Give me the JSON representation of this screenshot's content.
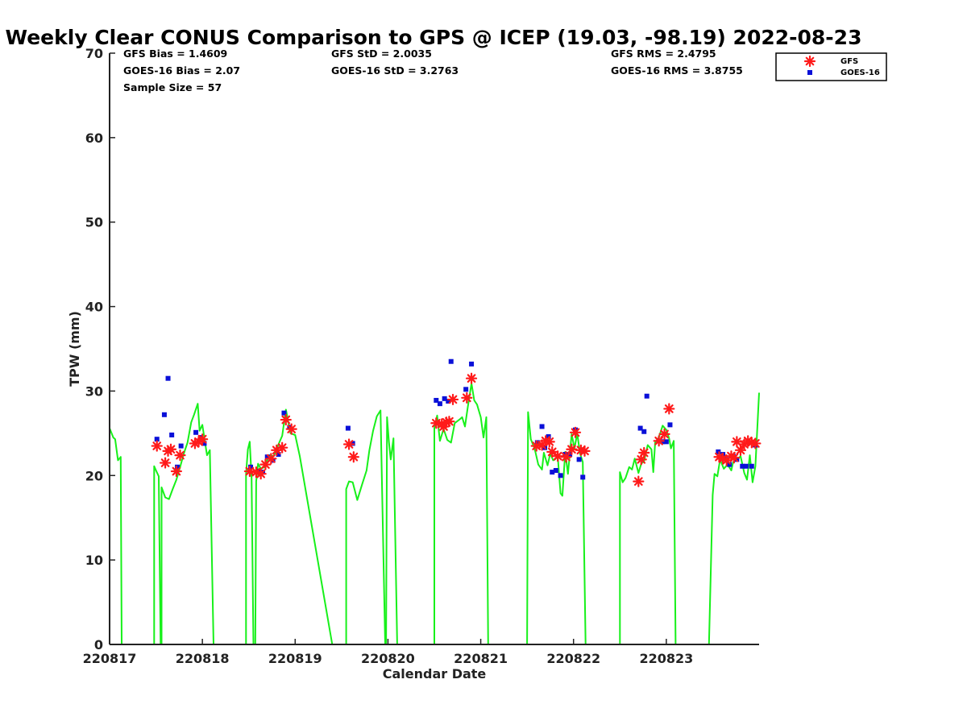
{
  "chart_data": {
    "type": "scatter",
    "title": "Weekly Clear CONUS Comparison to GPS @ ICEP (19.03, -98.19) 2022-08-23",
    "xlabel": "Calendar Date",
    "ylabel": "TPW (mm)",
    "xlim": [
      0,
      7
    ],
    "ylim": [
      0,
      70
    ],
    "x_ticks": [
      0,
      1,
      2,
      3,
      4,
      5,
      6
    ],
    "x_tick_labels": [
      "220817",
      "220818",
      "220819",
      "220820",
      "220821",
      "220822",
      "220823"
    ],
    "y_ticks": [
      0,
      10,
      20,
      30,
      40,
      50,
      60,
      70
    ],
    "grid": false,
    "legend_position": "top-right",
    "stats": {
      "gfs_bias": "GFS Bias = 1.4609",
      "goes_bias": "GOES-16 Bias = 2.07",
      "sample_size": "Sample Size = 57",
      "gfs_std": "GFS StD = 2.0035",
      "goes_std": "GOES-16 StD = 3.2763",
      "gfs_rms": "GFS RMS = 2.4795",
      "goes_rms": "GOES-16 RMS = 3.8755"
    },
    "series": [
      {
        "name": "GFS",
        "marker": "asterisk",
        "color": "#ff1a1a",
        "points": [
          [
            0.51,
            23.5
          ],
          [
            0.6,
            21.5
          ],
          [
            0.63,
            22.9
          ],
          [
            0.66,
            23.1
          ],
          [
            0.72,
            20.5
          ],
          [
            0.76,
            22.4
          ],
          [
            0.92,
            23.8
          ],
          [
            0.96,
            24.0
          ],
          [
            1.0,
            24.3
          ],
          [
            1.51,
            20.5
          ],
          [
            1.58,
            20.4
          ],
          [
            1.63,
            20.2
          ],
          [
            1.68,
            21.3
          ],
          [
            1.74,
            22.0
          ],
          [
            1.8,
            23.0
          ],
          [
            1.86,
            23.3
          ],
          [
            1.9,
            26.6
          ],
          [
            1.96,
            25.5
          ],
          [
            2.58,
            23.7
          ],
          [
            2.63,
            22.2
          ],
          [
            3.52,
            26.2
          ],
          [
            3.58,
            26.1
          ],
          [
            3.6,
            25.8
          ],
          [
            3.63,
            26.3
          ],
          [
            3.66,
            26.4
          ],
          [
            3.7,
            29.0
          ],
          [
            3.85,
            29.2
          ],
          [
            3.9,
            31.5
          ],
          [
            4.6,
            23.5
          ],
          [
            4.66,
            23.6
          ],
          [
            4.7,
            24.1
          ],
          [
            4.74,
            24.0
          ],
          [
            4.77,
            22.8
          ],
          [
            4.83,
            22.3
          ],
          [
            4.92,
            22.2
          ],
          [
            4.98,
            23.1
          ],
          [
            5.02,
            25.1
          ],
          [
            5.08,
            23.0
          ],
          [
            5.12,
            22.9
          ],
          [
            5.7,
            19.3
          ],
          [
            5.73,
            21.9
          ],
          [
            5.76,
            22.7
          ],
          [
            5.92,
            24.1
          ],
          [
            5.98,
            24.9
          ],
          [
            6.03,
            27.9
          ],
          [
            6.57,
            22.2
          ],
          [
            6.61,
            22.0
          ],
          [
            6.65,
            21.8
          ],
          [
            6.7,
            22.3
          ],
          [
            6.73,
            22.1
          ],
          [
            6.76,
            24.0
          ],
          [
            6.8,
            23.0
          ],
          [
            6.84,
            23.7
          ],
          [
            6.88,
            24.1
          ],
          [
            6.92,
            23.9
          ],
          [
            6.96,
            23.8
          ]
        ]
      },
      {
        "name": "GOES-16",
        "marker": "square",
        "color": "#0a10d8",
        "points": [
          [
            0.51,
            24.3
          ],
          [
            0.59,
            27.2
          ],
          [
            0.63,
            31.5
          ],
          [
            0.67,
            24.8
          ],
          [
            0.73,
            21.0
          ],
          [
            0.77,
            23.5
          ],
          [
            0.93,
            25.1
          ],
          [
            0.98,
            24.5
          ],
          [
            1.02,
            23.8
          ],
          [
            1.52,
            21.0
          ],
          [
            1.6,
            20.5
          ],
          [
            1.65,
            20.4
          ],
          [
            1.7,
            22.2
          ],
          [
            1.76,
            21.8
          ],
          [
            1.82,
            22.5
          ],
          [
            1.88,
            27.4
          ],
          [
            1.94,
            25.7
          ],
          [
            2.57,
            25.6
          ],
          [
            2.62,
            23.8
          ],
          [
            3.52,
            28.9
          ],
          [
            3.56,
            28.5
          ],
          [
            3.61,
            29.1
          ],
          [
            3.65,
            28.8
          ],
          [
            3.68,
            33.5
          ],
          [
            3.84,
            30.2
          ],
          [
            3.9,
            33.2
          ],
          [
            4.61,
            23.9
          ],
          [
            4.66,
            25.8
          ],
          [
            4.69,
            23.3
          ],
          [
            4.73,
            24.6
          ],
          [
            4.77,
            20.4
          ],
          [
            4.81,
            20.6
          ],
          [
            4.86,
            20.0
          ],
          [
            4.91,
            22.5
          ],
          [
            4.96,
            22.5
          ],
          [
            5.02,
            25.4
          ],
          [
            5.06,
            21.9
          ],
          [
            5.1,
            19.8
          ],
          [
            5.72,
            25.6
          ],
          [
            5.76,
            25.2
          ],
          [
            5.79,
            29.4
          ],
          [
            5.92,
            24.1
          ],
          [
            5.96,
            24.0
          ],
          [
            6.0,
            24.0
          ],
          [
            6.04,
            26.0
          ],
          [
            6.56,
            22.8
          ],
          [
            6.61,
            22.5
          ],
          [
            6.65,
            21.9
          ],
          [
            6.68,
            21.3
          ],
          [
            6.72,
            22.3
          ],
          [
            6.76,
            21.9
          ],
          [
            6.82,
            21.1
          ],
          [
            6.86,
            21.1
          ],
          [
            6.92,
            21.1
          ],
          [
            6.96,
            23.6
          ]
        ]
      },
      {
        "name": "GPS",
        "marker": "line",
        "color": "#17f01a",
        "segments": [
          [
            [
              0.0,
              25.6
            ],
            [
              0.04,
              24.5
            ],
            [
              0.06,
              24.3
            ],
            [
              0.09,
              21.8
            ],
            [
              0.12,
              22.2
            ],
            [
              0.13,
              0
            ]
          ],
          [
            [
              0.48,
              0
            ],
            [
              0.48,
              21.1
            ],
            [
              0.5,
              20.6
            ],
            [
              0.53,
              19.9
            ],
            [
              0.55,
              0
            ]
          ],
          [
            [
              0.56,
              0
            ],
            [
              0.56,
              18.6
            ],
            [
              0.6,
              17.4
            ],
            [
              0.64,
              17.2
            ],
            [
              0.68,
              18.4
            ],
            [
              0.72,
              19.5
            ],
            [
              0.76,
              21.0
            ],
            [
              0.8,
              22.6
            ],
            [
              0.84,
              23.9
            ],
            [
              0.88,
              26.3
            ],
            [
              0.91,
              27.2
            ],
            [
              0.95,
              28.5
            ],
            [
              0.97,
              25.3
            ],
            [
              1.0,
              26.0
            ],
            [
              1.05,
              22.4
            ],
            [
              1.08,
              23.0
            ],
            [
              1.12,
              0
            ]
          ],
          [
            [
              1.47,
              0
            ],
            [
              1.47,
              20.1
            ],
            [
              1.49,
              23.1
            ],
            [
              1.51,
              24.0
            ],
            [
              1.53,
              19.7
            ],
            [
              1.55,
              0
            ]
          ],
          [
            [
              1.57,
              0
            ],
            [
              1.58,
              19.3
            ],
            [
              1.6,
              21.4
            ],
            [
              1.63,
              20.8
            ],
            [
              1.67,
              21.0
            ],
            [
              1.72,
              22.4
            ],
            [
              1.77,
              22.3
            ],
            [
              1.82,
              23.7
            ],
            [
              1.86,
              24.7
            ],
            [
              1.9,
              27.8
            ],
            [
              1.95,
              25.0
            ],
            [
              2.0,
              24.8
            ],
            [
              2.05,
              22.3
            ],
            [
              2.4,
              0
            ]
          ],
          [
            [
              2.55,
              0
            ],
            [
              2.55,
              18.4
            ],
            [
              2.58,
              19.3
            ],
            [
              2.62,
              19.2
            ],
            [
              2.67,
              17.1
            ],
            [
              2.72,
              18.9
            ],
            [
              2.77,
              20.6
            ],
            [
              2.8,
              23.0
            ],
            [
              2.84,
              25.3
            ],
            [
              2.88,
              27.0
            ],
            [
              2.92,
              27.7
            ],
            [
              2.97,
              0
            ]
          ],
          [
            [
              2.98,
              0
            ],
            [
              2.99,
              26.9
            ],
            [
              3.01,
              24.0
            ],
            [
              3.03,
              21.9
            ],
            [
              3.06,
              24.4
            ],
            [
              3.1,
              0
            ]
          ],
          [
            [
              3.5,
              0
            ],
            [
              3.5,
              25.6
            ],
            [
              3.53,
              27.1
            ],
            [
              3.56,
              24.1
            ],
            [
              3.6,
              25.5
            ],
            [
              3.64,
              24.2
            ],
            [
              3.68,
              23.9
            ],
            [
              3.72,
              26.2
            ],
            [
              3.78,
              26.7
            ],
            [
              3.8,
              26.9
            ],
            [
              3.83,
              25.8
            ],
            [
              3.86,
              28.1
            ],
            [
              3.9,
              30.9
            ],
            [
              3.93,
              28.9
            ],
            [
              3.96,
              28.4
            ],
            [
              4.0,
              26.9
            ],
            [
              4.03,
              24.5
            ],
            [
              4.06,
              26.9
            ],
            [
              4.08,
              0
            ]
          ],
          [
            [
              4.5,
              0
            ],
            [
              4.51,
              27.5
            ],
            [
              4.54,
              24.3
            ],
            [
              4.58,
              23.2
            ],
            [
              4.62,
              21.3
            ],
            [
              4.66,
              20.7
            ],
            [
              4.68,
              22.7
            ],
            [
              4.72,
              21.2
            ],
            [
              4.75,
              22.6
            ],
            [
              4.78,
              21.8
            ],
            [
              4.8,
              21.9
            ],
            [
              4.83,
              22.3
            ],
            [
              4.86,
              17.9
            ],
            [
              4.88,
              17.6
            ],
            [
              4.91,
              22.8
            ],
            [
              4.94,
              20.2
            ],
            [
              4.98,
              24.9
            ],
            [
              5.01,
              23.2
            ],
            [
              5.04,
              25.0
            ],
            [
              5.07,
              22.6
            ],
            [
              5.1,
              21.6
            ],
            [
              5.13,
              0
            ]
          ],
          [
            [
              5.5,
              0
            ],
            [
              5.5,
              20.4
            ],
            [
              5.53,
              19.2
            ],
            [
              5.56,
              19.7
            ],
            [
              5.6,
              21.0
            ],
            [
              5.63,
              20.7
            ],
            [
              5.66,
              22.0
            ],
            [
              5.7,
              20.3
            ],
            [
              5.73,
              21.4
            ],
            [
              5.76,
              21.7
            ],
            [
              5.8,
              23.6
            ],
            [
              5.84,
              23.1
            ],
            [
              5.86,
              20.4
            ],
            [
              5.88,
              23.9
            ],
            [
              5.92,
              24.5
            ],
            [
              5.96,
              25.9
            ],
            [
              6.0,
              25.4
            ],
            [
              6.03,
              24.4
            ],
            [
              6.05,
              23.2
            ],
            [
              6.08,
              24.1
            ],
            [
              6.1,
              0
            ]
          ],
          [
            [
              6.46,
              0
            ],
            [
              6.5,
              17.7
            ],
            [
              6.52,
              20.2
            ],
            [
              6.55,
              19.9
            ],
            [
              6.58,
              21.9
            ],
            [
              6.62,
              20.8
            ],
            [
              6.66,
              21.3
            ],
            [
              6.7,
              20.6
            ],
            [
              6.72,
              21.6
            ],
            [
              6.76,
              21.8
            ],
            [
              6.8,
              22.3
            ],
            [
              6.84,
              20.3
            ],
            [
              6.87,
              19.5
            ],
            [
              6.9,
              22.4
            ],
            [
              6.93,
              19.2
            ],
            [
              6.96,
              21.1
            ],
            [
              7.0,
              29.8
            ]
          ]
        ]
      }
    ]
  }
}
